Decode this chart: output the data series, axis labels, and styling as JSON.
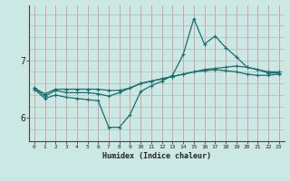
{
  "xlabel": "Humidex (Indice chaleur)",
  "bg_color": "#cce8e4",
  "grid_color_v": "#d4a0a0",
  "grid_color_h": "#a8c8c4",
  "line_color": "#1a6e6e",
  "x": [
    0,
    1,
    2,
    3,
    4,
    5,
    6,
    7,
    8,
    9,
    10,
    11,
    12,
    13,
    14,
    15,
    16,
    17,
    18,
    19,
    20,
    21,
    22,
    23
  ],
  "line1": [
    6.52,
    6.42,
    6.5,
    6.5,
    6.5,
    6.5,
    6.5,
    6.48,
    6.48,
    6.52,
    6.6,
    6.64,
    6.68,
    6.72,
    6.76,
    6.8,
    6.84,
    6.86,
    6.88,
    6.9,
    6.88,
    6.84,
    6.8,
    6.8
  ],
  "line2": [
    6.52,
    6.38,
    6.48,
    6.44,
    6.44,
    6.44,
    6.42,
    6.38,
    6.44,
    6.52,
    6.6,
    6.64,
    6.68,
    6.72,
    6.76,
    6.8,
    6.82,
    6.84,
    6.82,
    6.8,
    6.76,
    6.74,
    6.74,
    6.76
  ],
  "line3": [
    6.5,
    6.34,
    6.4,
    6.36,
    6.34,
    6.32,
    6.3,
    5.84,
    5.84,
    6.06,
    6.46,
    6.56,
    6.64,
    6.74,
    7.1,
    7.72,
    7.28,
    7.42,
    7.22,
    7.06,
    6.88,
    6.84,
    6.78,
    6.78
  ],
  "yticks": [
    6,
    7
  ],
  "ylim": [
    5.6,
    7.95
  ],
  "xlim": [
    -0.5,
    23.5
  ],
  "xtick_labels": [
    "0",
    "1",
    "2",
    "3",
    "4",
    "5",
    "6",
    "7",
    "8",
    "9",
    "10",
    "11",
    "12",
    "13",
    "14",
    "15",
    "16",
    "17",
    "18",
    "19",
    "20",
    "21",
    "22",
    "23"
  ]
}
